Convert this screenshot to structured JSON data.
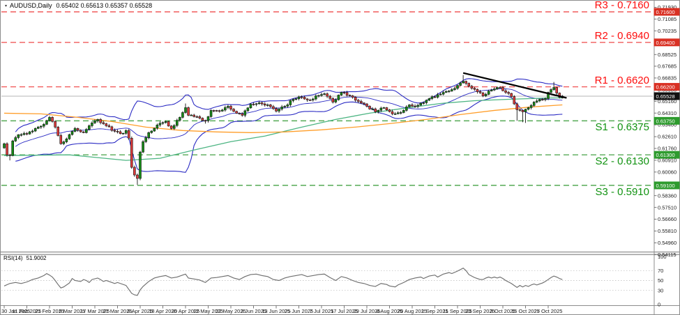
{
  "window": {
    "symbol_title": "AUDUSD,Daily",
    "ohlc_text": "0.65402 0.65613 0.65357 0.65528",
    "dropdown_icon": "▾"
  },
  "indicator": {
    "label": "RSI(14)",
    "value": "51.9002"
  },
  "chart_data": {
    "type": "candlestick",
    "symbol": "AUDUSD",
    "timeframe": "Daily",
    "current": {
      "open": 0.65402,
      "high": 0.65613,
      "low": 0.65357,
      "close": 0.65528
    },
    "visible_price_range": [
      0.5433,
      0.72
    ],
    "levels": {
      "resistance": [
        {
          "name": "R3",
          "value": 0.716,
          "label": "R3 - 0.7160"
        },
        {
          "name": "R2",
          "value": 0.694,
          "label": "R2 - 0.6940"
        },
        {
          "name": "R1",
          "value": 0.662,
          "label": "R1 - 0.6620"
        }
      ],
      "support": [
        {
          "name": "S1",
          "value": 0.6375,
          "label": "S1 - 0.6375"
        },
        {
          "name": "S2",
          "value": 0.613,
          "label": "S2 - 0.6130"
        },
        {
          "name": "S3",
          "value": 0.591,
          "label": "S3 - 0.5910"
        }
      ]
    },
    "price_axis": {
      "ticks": [
        "0.71930",
        "0.71085",
        "0.70235",
        "0.68525",
        "0.67685",
        "0.66835",
        "0.65985",
        "0.65160",
        "0.64310",
        "0.63460",
        "0.62610",
        "0.61760",
        "0.60910",
        "0.60060",
        "0.58360",
        "0.57510",
        "0.56660",
        "0.55810",
        "0.54960",
        "0.54115"
      ],
      "boxes": [
        {
          "value": "0.71600",
          "kind": "resistance"
        },
        {
          "value": "0.69400",
          "kind": "resistance"
        },
        {
          "value": "0.66200",
          "kind": "resistance"
        },
        {
          "value": "0.65528",
          "kind": "current"
        },
        {
          "value": "0.63750",
          "kind": "support"
        },
        {
          "value": "0.61300",
          "kind": "support"
        },
        {
          "value": "0.59100",
          "kind": "support"
        }
      ]
    },
    "date_axis": {
      "label_every_days": 8,
      "labels": [
        "30 Jan 2025",
        "11 Feb 2025",
        "21 Feb 2025",
        "5 Mar 2025",
        "17 Mar 2025",
        "27 Mar 2025",
        "8 Apr 2025",
        "18 Apr 2025",
        "30 Apr 2025",
        "12 May 2025",
        "22 May 2025",
        "3 Jun 2025",
        "13 Jun 2025",
        "25 Jun 2025",
        "7 Jul 2025",
        "17 Jul 2025",
        "29 Jul 2025",
        "8 Aug 2025",
        "20 Aug 2025",
        "1 Sep 2025",
        "11 Sep 2025",
        "23 Sep 2025",
        "3 Oct 2025",
        "15 Oct 2025",
        "27 Oct 2025"
      ]
    },
    "price_keyframes": [
      [
        0,
        0.621
      ],
      [
        1,
        0.613
      ],
      [
        2,
        0.6125
      ],
      [
        3,
        0.623
      ],
      [
        5,
        0.6275
      ],
      [
        8,
        0.628
      ],
      [
        11,
        0.632
      ],
      [
        14,
        0.635
      ],
      [
        16,
        0.64
      ],
      [
        18,
        0.633
      ],
      [
        20,
        0.621
      ],
      [
        22,
        0.6245
      ],
      [
        25,
        0.632
      ],
      [
        28,
        0.629
      ],
      [
        31,
        0.636
      ],
      [
        33,
        0.6385
      ],
      [
        36,
        0.634
      ],
      [
        39,
        0.63
      ],
      [
        42,
        0.6285
      ],
      [
        43,
        0.6305
      ],
      [
        44,
        0.625
      ],
      [
        45,
        0.604
      ],
      [
        46,
        0.5985
      ],
      [
        47,
        0.596
      ],
      [
        48,
        0.615
      ],
      [
        49,
        0.6225
      ],
      [
        51,
        0.629
      ],
      [
        54,
        0.6345
      ],
      [
        57,
        0.637
      ],
      [
        59,
        0.632
      ],
      [
        62,
        0.64
      ],
      [
        64,
        0.647
      ],
      [
        65,
        0.6415
      ],
      [
        68,
        0.6405
      ],
      [
        71,
        0.6375
      ],
      [
        73,
        0.645
      ],
      [
        76,
        0.6445
      ],
      [
        79,
        0.648
      ],
      [
        82,
        0.643
      ],
      [
        84,
        0.6415
      ],
      [
        87,
        0.6495
      ],
      [
        90,
        0.6505
      ],
      [
        93,
        0.649
      ],
      [
        96,
        0.6445
      ],
      [
        99,
        0.648
      ],
      [
        102,
        0.653
      ],
      [
        105,
        0.6545
      ],
      [
        108,
        0.6525
      ],
      [
        110,
        0.6555
      ],
      [
        113,
        0.657
      ],
      [
        116,
        0.651
      ],
      [
        119,
        0.658
      ],
      [
        122,
        0.6555
      ],
      [
        125,
        0.6515
      ],
      [
        128,
        0.648
      ],
      [
        131,
        0.644
      ],
      [
        134,
        0.647
      ],
      [
        137,
        0.6425
      ],
      [
        140,
        0.6435
      ],
      [
        143,
        0.649
      ],
      [
        145,
        0.648
      ],
      [
        148,
        0.6505
      ],
      [
        150,
        0.6535
      ],
      [
        152,
        0.6545
      ],
      [
        155,
        0.658
      ],
      [
        158,
        0.66
      ],
      [
        160,
        0.663
      ],
      [
        162,
        0.666
      ],
      [
        163,
        0.6645
      ],
      [
        165,
        0.661
      ],
      [
        167,
        0.6585
      ],
      [
        169,
        0.6555
      ],
      [
        171,
        0.659
      ],
      [
        173,
        0.6605
      ],
      [
        175,
        0.6615
      ],
      [
        177,
        0.658
      ],
      [
        179,
        0.655
      ],
      [
        181,
        0.6455
      ],
      [
        183,
        0.644
      ],
      [
        185,
        0.647
      ],
      [
        187,
        0.651
      ],
      [
        189,
        0.653
      ],
      [
        191,
        0.6535
      ],
      [
        192,
        0.658
      ],
      [
        194,
        0.6615
      ],
      [
        195,
        0.6575
      ],
      [
        196,
        0.6545
      ],
      [
        197,
        0.6553
      ]
    ],
    "wick_overrides": {
      "2": {
        "low": 0.609
      },
      "16": {
        "high": 0.641
      },
      "47": {
        "low": 0.5913
      },
      "64": {
        "high": 0.65
      },
      "71": {
        "low": 0.6355
      },
      "162": {
        "high": 0.6705
      },
      "181": {
        "low": 0.6375
      },
      "183": {
        "low": 0.6365
      },
      "184": {
        "low": 0.636
      },
      "194": {
        "high": 0.6655
      }
    },
    "bollinger": {
      "period": 20,
      "deviation": 2
    },
    "ma_fast_points": [
      [
        0,
        0.6125
      ],
      [
        23,
        0.613
      ],
      [
        43,
        0.609
      ],
      [
        55,
        0.6105
      ],
      [
        67,
        0.6165
      ],
      [
        80,
        0.6225
      ],
      [
        92,
        0.6265
      ],
      [
        104,
        0.6325
      ],
      [
        117,
        0.6385
      ],
      [
        129,
        0.643
      ],
      [
        141,
        0.6465
      ],
      [
        154,
        0.65
      ],
      [
        166,
        0.652
      ],
      [
        178,
        0.653
      ],
      [
        193,
        0.654
      ],
      [
        197,
        0.654
      ]
    ],
    "ma_slow_points": [
      [
        0,
        0.643
      ],
      [
        13,
        0.6425
      ],
      [
        26,
        0.64
      ],
      [
        38,
        0.637
      ],
      [
        50,
        0.633
      ],
      [
        63,
        0.6305
      ],
      [
        75,
        0.6295
      ],
      [
        87,
        0.629
      ],
      [
        99,
        0.6295
      ],
      [
        112,
        0.631
      ],
      [
        124,
        0.633
      ],
      [
        136,
        0.6355
      ],
      [
        149,
        0.6385
      ],
      [
        161,
        0.642
      ],
      [
        173,
        0.645
      ],
      [
        186,
        0.6475
      ],
      [
        197,
        0.649
      ]
    ],
    "trendline": {
      "from": [
        162,
        0.672
      ],
      "to": [
        198.5,
        0.654
      ]
    },
    "rsi": {
      "levels": [
        70,
        50,
        30
      ],
      "range": [
        0,
        100
      ],
      "points": [
        [
          0,
          39
        ],
        [
          2,
          44
        ],
        [
          4,
          46
        ],
        [
          6,
          44
        ],
        [
          8,
          47
        ],
        [
          10,
          52
        ],
        [
          12,
          55
        ],
        [
          14,
          60
        ],
        [
          15,
          64
        ],
        [
          16,
          61
        ],
        [
          17,
          57
        ],
        [
          18,
          50
        ],
        [
          19,
          42
        ],
        [
          20,
          35
        ],
        [
          21,
          37
        ],
        [
          23,
          45
        ],
        [
          24,
          54
        ],
        [
          25,
          50
        ],
        [
          27,
          48
        ],
        [
          28,
          52
        ],
        [
          29,
          50
        ],
        [
          30,
          46
        ],
        [
          31,
          52
        ],
        [
          33,
          55
        ],
        [
          34,
          52
        ],
        [
          35,
          48
        ],
        [
          36,
          50
        ],
        [
          38,
          46
        ],
        [
          39,
          44
        ],
        [
          40,
          46
        ],
        [
          41,
          44
        ],
        [
          43,
          40
        ],
        [
          44,
          32
        ],
        [
          45,
          24
        ],
        [
          46,
          21
        ],
        [
          47,
          20
        ],
        [
          48,
          31
        ],
        [
          49,
          38
        ],
        [
          51,
          48
        ],
        [
          53,
          55
        ],
        [
          55,
          58
        ],
        [
          57,
          60
        ],
        [
          59,
          55
        ],
        [
          61,
          57
        ],
        [
          63,
          61
        ],
        [
          64,
          63
        ],
        [
          65,
          55
        ],
        [
          67,
          53
        ],
        [
          69,
          51
        ],
        [
          71,
          46
        ],
        [
          73,
          55
        ],
        [
          75,
          56
        ],
        [
          77,
          58
        ],
        [
          79,
          60
        ],
        [
          81,
          55
        ],
        [
          83,
          52
        ],
        [
          85,
          58
        ],
        [
          87,
          62
        ],
        [
          89,
          63
        ],
        [
          91,
          60
        ],
        [
          93,
          58
        ],
        [
          95,
          52
        ],
        [
          97,
          50
        ],
        [
          99,
          55
        ],
        [
          101,
          58
        ],
        [
          103,
          60
        ],
        [
          105,
          62
        ],
        [
          107,
          58
        ],
        [
          109,
          60
        ],
        [
          111,
          62
        ],
        [
          113,
          63
        ],
        [
          115,
          56
        ],
        [
          117,
          50
        ],
        [
          119,
          58
        ],
        [
          121,
          55
        ],
        [
          123,
          50
        ],
        [
          125,
          46
        ],
        [
          127,
          44
        ],
        [
          129,
          40
        ],
        [
          131,
          38
        ],
        [
          133,
          44
        ],
        [
          135,
          42
        ],
        [
          136,
          39
        ],
        [
          138,
          37
        ],
        [
          139,
          41
        ],
        [
          141,
          46
        ],
        [
          143,
          52
        ],
        [
          145,
          55
        ],
        [
          147,
          57
        ],
        [
          148,
          54
        ],
        [
          150,
          59
        ],
        [
          152,
          61
        ],
        [
          153,
          57
        ],
        [
          155,
          63
        ],
        [
          157,
          66
        ],
        [
          158,
          64
        ],
        [
          160,
          69
        ],
        [
          161,
          72
        ],
        [
          162,
          75
        ],
        [
          163,
          70
        ],
        [
          164,
          62
        ],
        [
          165,
          59
        ],
        [
          166,
          56
        ],
        [
          167,
          54
        ],
        [
          168,
          52
        ],
        [
          169,
          52
        ],
        [
          170,
          55
        ],
        [
          171,
          57
        ],
        [
          172,
          55
        ],
        [
          173,
          57
        ],
        [
          174,
          55
        ],
        [
          175,
          57
        ],
        [
          176,
          54
        ],
        [
          177,
          50
        ],
        [
          178,
          47
        ],
        [
          179,
          44
        ],
        [
          180,
          40
        ],
        [
          181,
          36
        ],
        [
          182,
          40
        ],
        [
          183,
          37
        ],
        [
          184,
          40
        ],
        [
          185,
          38
        ],
        [
          186,
          41
        ],
        [
          187,
          43
        ],
        [
          188,
          41
        ],
        [
          189,
          43
        ],
        [
          190,
          45
        ],
        [
          191,
          48
        ],
        [
          192,
          52
        ],
        [
          193,
          56
        ],
        [
          194,
          59
        ],
        [
          195,
          57
        ],
        [
          196,
          54
        ],
        [
          197,
          51.9
        ]
      ]
    },
    "colors": {
      "bull": "#168a16",
      "bear": "#dd3b3b",
      "outline": "#141414",
      "band": "#2b2bc4",
      "ma_fast": "#4db583",
      "ma_slow": "#ff9e2a",
      "res_line": "#f15b5b",
      "res_text": "#fe0d0d",
      "sup_line": "#55aa55",
      "sup_text": "#129312",
      "trend": "#000000",
      "price_line": "#b4b4b4",
      "rsi": "#6f6f6f",
      "box_res": "#d93124",
      "box_sup": "#2e9b2e",
      "box_cur": "#111111",
      "axis_text": "#1c1c1c",
      "grid_dot": "#c9c9c9",
      "border": "#8c8c8c"
    }
  }
}
